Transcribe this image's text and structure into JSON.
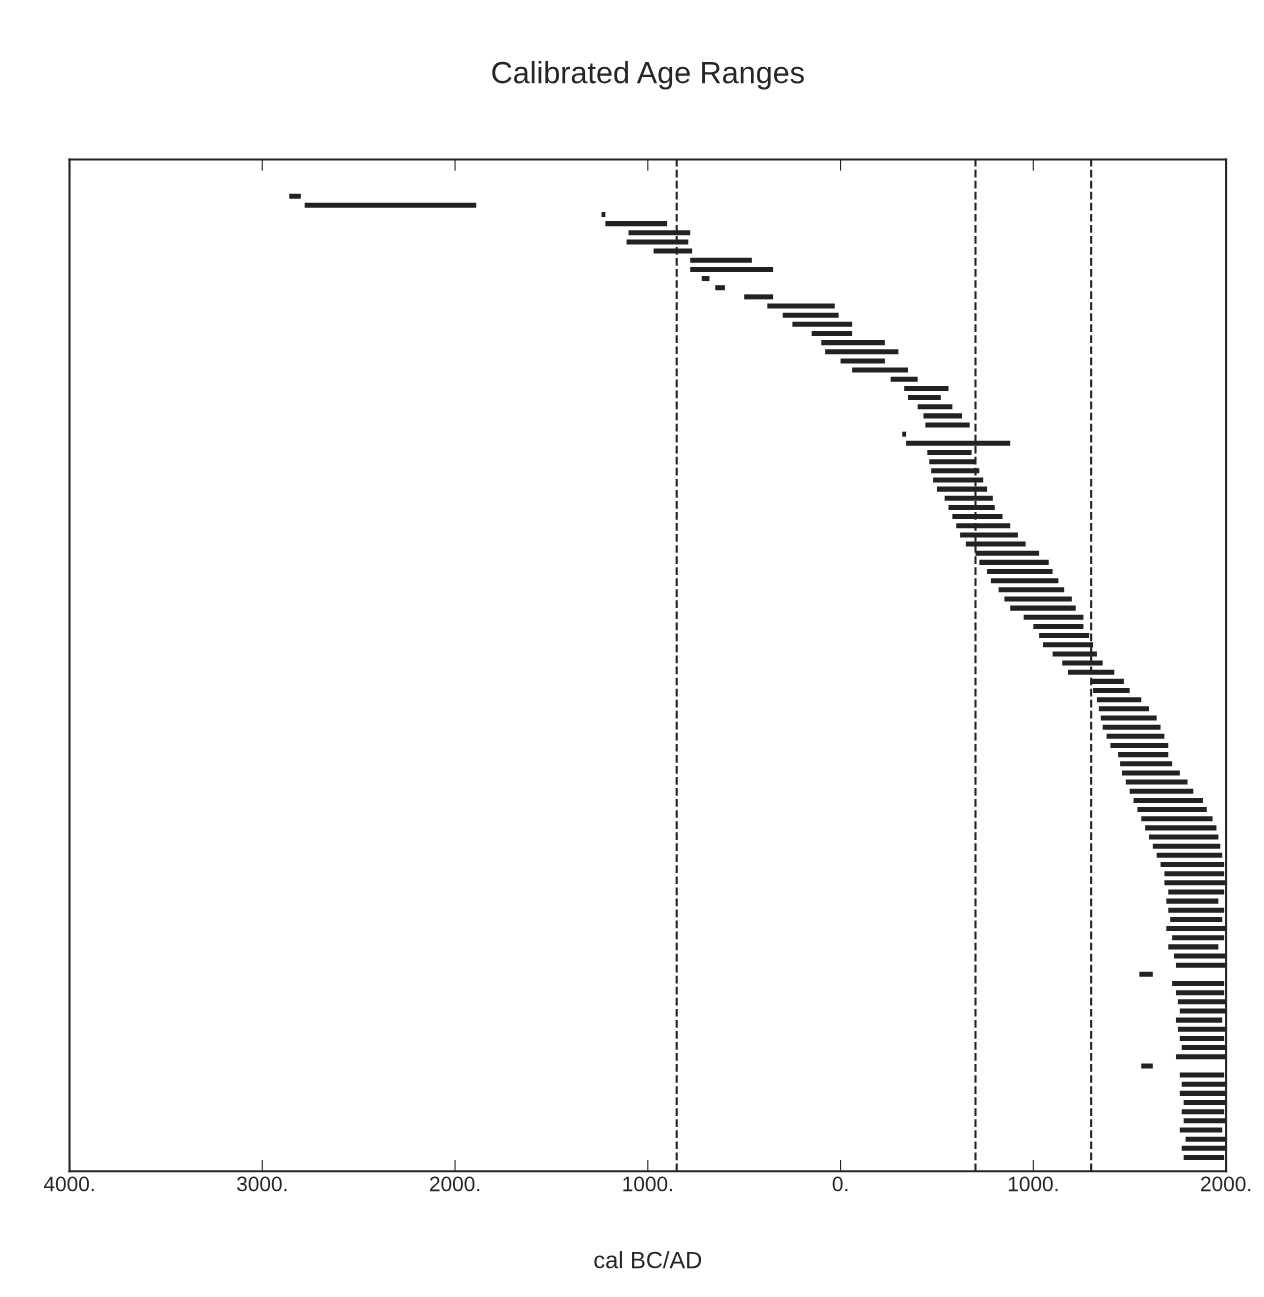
{
  "chart_data": {
    "type": "bar",
    "orientation": "horizontal",
    "title": "Calibrated Age Ranges",
    "xlabel": "cal BC/AD",
    "categories": [
      null,
      null,
      null,
      null,
      null,
      null,
      null,
      null,
      null,
      null,
      null,
      null,
      null,
      null,
      null,
      null,
      null,
      null,
      null,
      null,
      null,
      null,
      null,
      null,
      null,
      null,
      null,
      null,
      null,
      null,
      null,
      null,
      null,
      null,
      null,
      null,
      null,
      null,
      null,
      null,
      null,
      null,
      null,
      null,
      null,
      null,
      null,
      null,
      null,
      null,
      null,
      null,
      null,
      null,
      null,
      null,
      null,
      null,
      null,
      null,
      null,
      null,
      null,
      null,
      null,
      null,
      null,
      null,
      null,
      null,
      null,
      null,
      null,
      null,
      null,
      null,
      null,
      null,
      null,
      null,
      null,
      null,
      null,
      null,
      null,
      null,
      null,
      null,
      null,
      null,
      null,
      null,
      null,
      null,
      null,
      null,
      null,
      null,
      null,
      null,
      null,
      null,
      null,
      null,
      null,
      null
    ],
    "base": [
      -2860,
      -2780,
      -1240,
      -1220,
      -1100,
      -1110,
      -970,
      -780,
      -780,
      -720,
      -650,
      -500,
      -380,
      -300,
      -250,
      -150,
      -100,
      -80,
      0,
      60,
      260,
      330,
      350,
      400,
      430,
      440,
      320,
      340,
      450,
      460,
      470,
      480,
      500,
      540,
      560,
      580,
      600,
      620,
      650,
      700,
      720,
      760,
      780,
      820,
      850,
      880,
      950,
      1000,
      1030,
      1050,
      1100,
      1150,
      1180,
      1300,
      1310,
      1330,
      1340,
      1350,
      1360,
      1380,
      1400,
      1440,
      1450,
      1460,
      1480,
      1500,
      1520,
      1540,
      1560,
      1580,
      1600,
      1620,
      1640,
      1660,
      1680,
      1680,
      1700,
      1690,
      1700,
      1710,
      1690,
      1720,
      1700,
      1730,
      1740,
      1550,
      1720,
      1740,
      1750,
      1760,
      1740,
      1750,
      1760,
      1770,
      1740,
      1560,
      1760,
      1770,
      1760,
      1780,
      1770,
      1780,
      1760,
      1790,
      1770,
      1780
    ],
    "values": [
      60,
      890,
      20,
      320,
      320,
      320,
      200,
      320,
      430,
      40,
      50,
      150,
      350,
      290,
      310,
      210,
      330,
      380,
      230,
      290,
      140,
      230,
      170,
      180,
      200,
      230,
      20,
      540,
      230,
      240,
      250,
      260,
      260,
      250,
      240,
      260,
      280,
      300,
      310,
      330,
      360,
      340,
      350,
      340,
      350,
      340,
      310,
      260,
      260,
      260,
      230,
      210,
      240,
      170,
      190,
      230,
      260,
      290,
      300,
      300,
      300,
      260,
      270,
      300,
      320,
      330,
      360,
      360,
      370,
      370,
      360,
      350,
      340,
      330,
      310,
      320,
      290,
      270,
      290,
      270,
      310,
      270,
      260,
      270,
      260,
      70,
      270,
      250,
      250,
      240,
      240,
      250,
      230,
      230,
      260,
      60,
      230,
      230,
      240,
      220,
      220,
      220,
      220,
      210,
      230,
      210
    ],
    "color": "#222222",
    "xlim": [
      -4000,
      2000
    ],
    "xticks": [
      {
        "value": -4000,
        "label": "4000."
      },
      {
        "value": -3000,
        "label": "3000."
      },
      {
        "value": -2000,
        "label": "2000."
      },
      {
        "value": -1000,
        "label": "1000."
      },
      {
        "value": 0,
        "label": "0."
      },
      {
        "value": 1000,
        "label": "1000."
      },
      {
        "value": 2000,
        "label": "2000."
      }
    ],
    "tick_labels": "x",
    "ref_lines": [
      {
        "axis": "x",
        "value": -850,
        "line_style": "dashed",
        "color": "#222222"
      },
      {
        "axis": "x",
        "value": 700,
        "line_style": "dashed",
        "color": "#222222"
      },
      {
        "axis": "x",
        "value": 1300,
        "line_style": "dashed",
        "color": "#222222"
      }
    ],
    "grid": false
  }
}
